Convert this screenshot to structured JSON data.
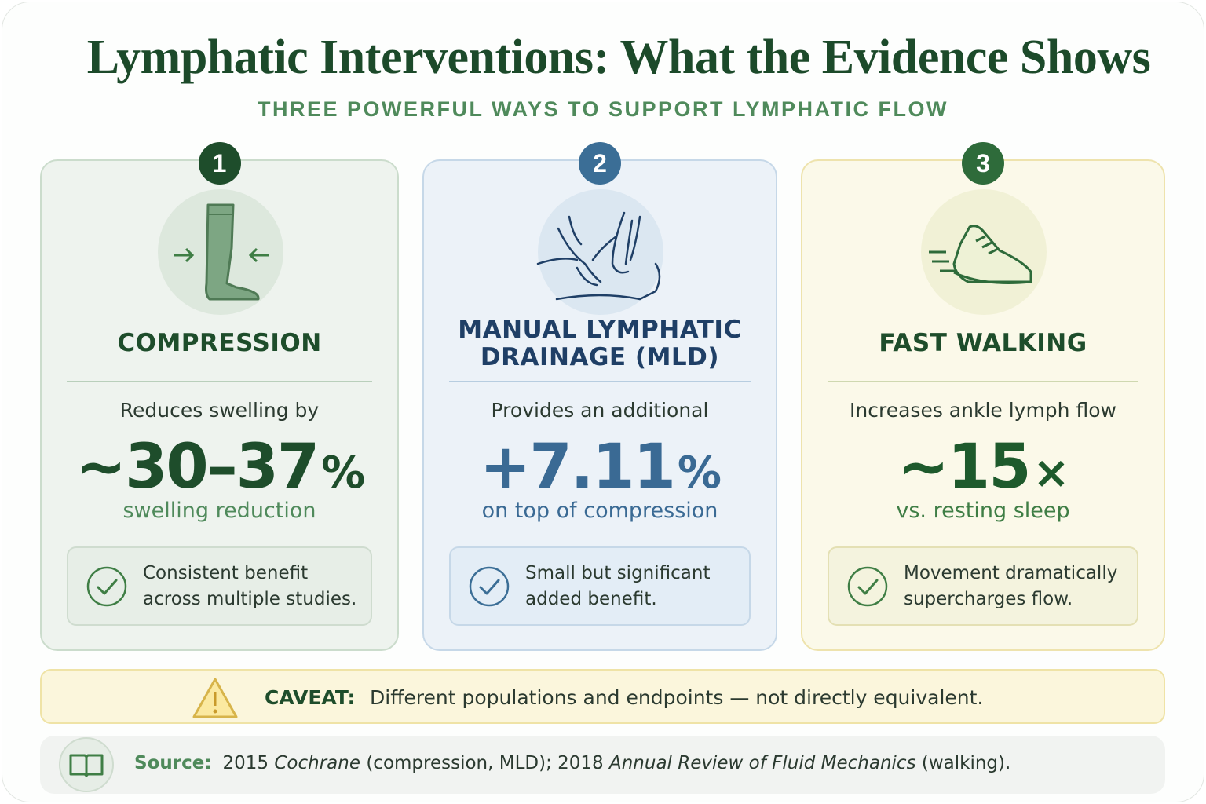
{
  "header": {
    "title": "Lymphatic Interventions: What the Evidence Shows",
    "subtitle": "THREE POWERFUL WAYS TO SUPPORT LYMPHATIC FLOW"
  },
  "cards": [
    {
      "number": "1",
      "heading": [
        "COMPRESSION"
      ],
      "lead": "Reduces swelling by",
      "stat": "~30–37",
      "unit": "%",
      "stat_caption": "swelling reduction",
      "note": [
        "Consistent benefit",
        "across multiple studies."
      ]
    },
    {
      "number": "2",
      "heading": [
        "MANUAL LYMPHATIC",
        "DRAINAGE (MLD)"
      ],
      "lead": "Provides an additional",
      "stat": "+7.11",
      "unit": "%",
      "stat_caption": "on top of compression",
      "note": [
        "Small but significant",
        "added benefit."
      ]
    },
    {
      "number": "3",
      "heading": [
        "FAST WALKING"
      ],
      "lead": "Increases ankle lymph flow",
      "stat": "~15",
      "unit": "×",
      "stat_caption": "vs. resting sleep",
      "note": [
        "Movement dramatically",
        "supercharges flow."
      ]
    }
  ],
  "caveat": {
    "label": "CAVEAT:",
    "text": "Different populations and endpoints — not directly equivalent."
  },
  "source": {
    "label": "Source:",
    "segments": [
      "2015 ",
      "Cochrane",
      " (compression, MLD); 2018 ",
      "Annual Review of Fluid Mechanics",
      " (walking)."
    ]
  }
}
